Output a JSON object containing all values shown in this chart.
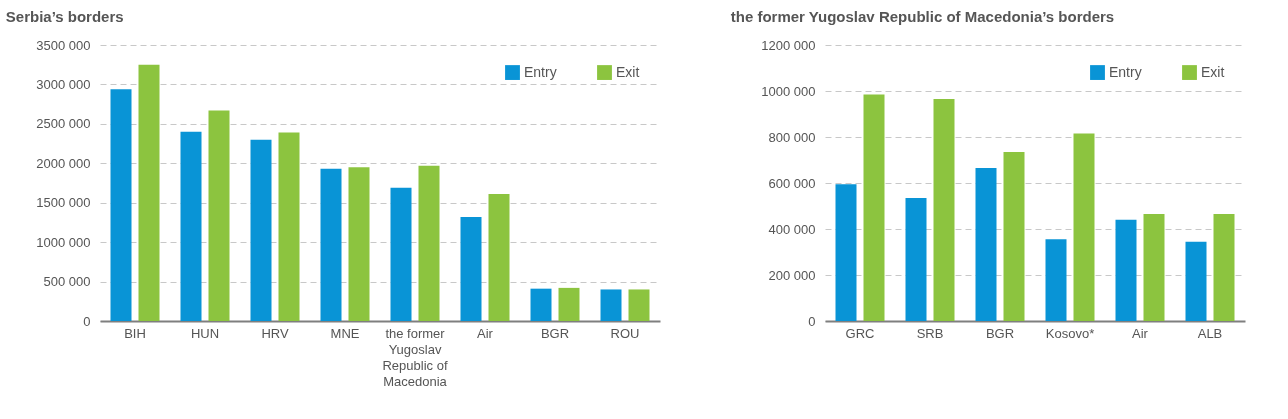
{
  "chart_data": [
    {
      "type": "bar",
      "title": "Serbia’s borders",
      "categories": [
        "BIH",
        "HUN",
        "HRV",
        "MNE",
        "the former Yugoslav Republic of Macedonia",
        "Air",
        "BGR",
        "ROU"
      ],
      "series": [
        {
          "name": "Entry",
          "color": "#0994d6",
          "values": [
            2940000,
            2400000,
            2300000,
            1930000,
            1690000,
            1320000,
            410000,
            400000
          ]
        },
        {
          "name": "Exit",
          "color": "#8cc43f",
          "values": [
            3250000,
            2670000,
            2390000,
            1950000,
            1970000,
            1610000,
            420000,
            400000
          ]
        }
      ],
      "ylim": [
        0,
        3500000
      ],
      "yticks": [
        {
          "value": 0,
          "label": "0"
        },
        {
          "value": 500000,
          "label": "500 000"
        },
        {
          "value": 1000000,
          "label": "1000 000"
        },
        {
          "value": 1500000,
          "label": "1500 000"
        },
        {
          "value": 2000000,
          "label": "2000 000"
        },
        {
          "value": 2500000,
          "label": "2500 000"
        },
        {
          "value": 3000000,
          "label": "3000 000"
        },
        {
          "value": 3500000,
          "label": "3500 000"
        }
      ],
      "grid": "y",
      "legend": "top right"
    },
    {
      "type": "bar",
      "title": "the former Yugoslav Republic of Macedonia’s borders",
      "categories": [
        "GRC",
        "SRB",
        "BGR",
        "Kosovo*",
        "Air",
        "ALB"
      ],
      "series": [
        {
          "name": "Entry",
          "color": "#0994d6",
          "values": [
            595000,
            535000,
            665000,
            355000,
            440000,
            345000
          ]
        },
        {
          "name": "Exit",
          "color": "#8cc43f",
          "values": [
            985000,
            965000,
            735000,
            815000,
            465000,
            465000
          ]
        }
      ],
      "ylim": [
        0,
        1200000
      ],
      "yticks": [
        {
          "value": 0,
          "label": "0"
        },
        {
          "value": 200000,
          "label": "200 000"
        },
        {
          "value": 400000,
          "label": "400 000"
        },
        {
          "value": 600000,
          "label": "600 000"
        },
        {
          "value": 800000,
          "label": "800 000"
        },
        {
          "value": 1000000,
          "label": "1000 000"
        },
        {
          "value": 1200000,
          "label": "1200 000"
        }
      ],
      "grid": "y",
      "legend": "top right"
    }
  ]
}
